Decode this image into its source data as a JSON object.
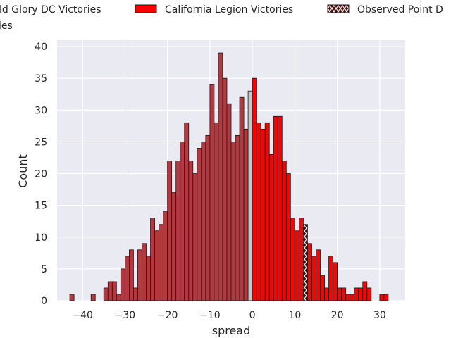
{
  "chart_data": {
    "type": "bar",
    "xlabel": "spread",
    "ylabel": "Count",
    "xlim": [
      -46,
      36
    ],
    "ylim": [
      0,
      41
    ],
    "bin_width": 1,
    "x_ticks": [
      -40,
      -30,
      -20,
      -10,
      0,
      10,
      20,
      30
    ],
    "y_ticks": [
      0,
      5,
      10,
      15,
      20,
      25,
      30,
      35,
      40
    ],
    "grid": true,
    "legend_position": "top (cropped at left and right edges)",
    "legend": [
      {
        "label": "Old Glory DC Victories",
        "color": "#b03a3f"
      },
      {
        "label": "California Legion Victories",
        "color": "#ff0000"
      },
      {
        "label": "Observed Point D",
        "color": "#000000"
      }
    ],
    "legend_overflow_text": "ies",
    "colors": {
      "background": "#eaeaf2",
      "grid": "#ffffff",
      "old_glory": "#b03a3f",
      "california": "#ff0000",
      "tie": "#c8c8c8",
      "observed": "#4a1010",
      "edge": "#1a1a1a"
    },
    "series": [
      {
        "name": "Old Glory DC Victories",
        "bins": [
          [
            -43,
            1
          ],
          [
            -38,
            1
          ],
          [
            -35,
            2
          ],
          [
            -34,
            3
          ],
          [
            -33,
            3
          ],
          [
            -32,
            1
          ],
          [
            -31,
            5
          ],
          [
            -30,
            7
          ],
          [
            -29,
            8
          ],
          [
            -28,
            2
          ],
          [
            -27,
            8
          ],
          [
            -26,
            9
          ],
          [
            -25,
            7
          ],
          [
            -24,
            13
          ],
          [
            -23,
            11
          ],
          [
            -22,
            12
          ],
          [
            -21,
            14
          ],
          [
            -20,
            22
          ],
          [
            -19,
            17
          ],
          [
            -18,
            22
          ],
          [
            -17,
            25
          ],
          [
            -16,
            28
          ],
          [
            -15,
            22
          ],
          [
            -14,
            20
          ],
          [
            -13,
            24
          ],
          [
            -12,
            25
          ],
          [
            -11,
            26
          ],
          [
            -10,
            34
          ],
          [
            -9,
            28
          ],
          [
            -8,
            39
          ],
          [
            -7,
            35
          ],
          [
            -6,
            31
          ],
          [
            -5,
            25
          ],
          [
            -4,
            26
          ],
          [
            -3,
            32
          ],
          [
            -2,
            27
          ]
        ]
      },
      {
        "name": "ties",
        "bins": [
          [
            -1,
            33
          ]
        ]
      },
      {
        "name": "California Legion Victories",
        "bins": [
          [
            0,
            35
          ],
          [
            1,
            28
          ],
          [
            2,
            27
          ],
          [
            3,
            28
          ],
          [
            4,
            23
          ],
          [
            5,
            29
          ],
          [
            6,
            29
          ],
          [
            7,
            22
          ],
          [
            8,
            20
          ],
          [
            9,
            13
          ],
          [
            10,
            11
          ],
          [
            11,
            13
          ],
          [
            13,
            9
          ],
          [
            14,
            7
          ],
          [
            15,
            8
          ],
          [
            16,
            4
          ],
          [
            17,
            2
          ],
          [
            18,
            7
          ],
          [
            19,
            6
          ],
          [
            20,
            2
          ],
          [
            21,
            2
          ],
          [
            22,
            1
          ],
          [
            23,
            1
          ],
          [
            24,
            2
          ],
          [
            25,
            2
          ],
          [
            26,
            3
          ],
          [
            27,
            2
          ],
          [
            30,
            1
          ],
          [
            31,
            1
          ]
        ]
      },
      {
        "name": "Observed Point D",
        "bins": [
          [
            12,
            12
          ]
        ]
      }
    ]
  }
}
